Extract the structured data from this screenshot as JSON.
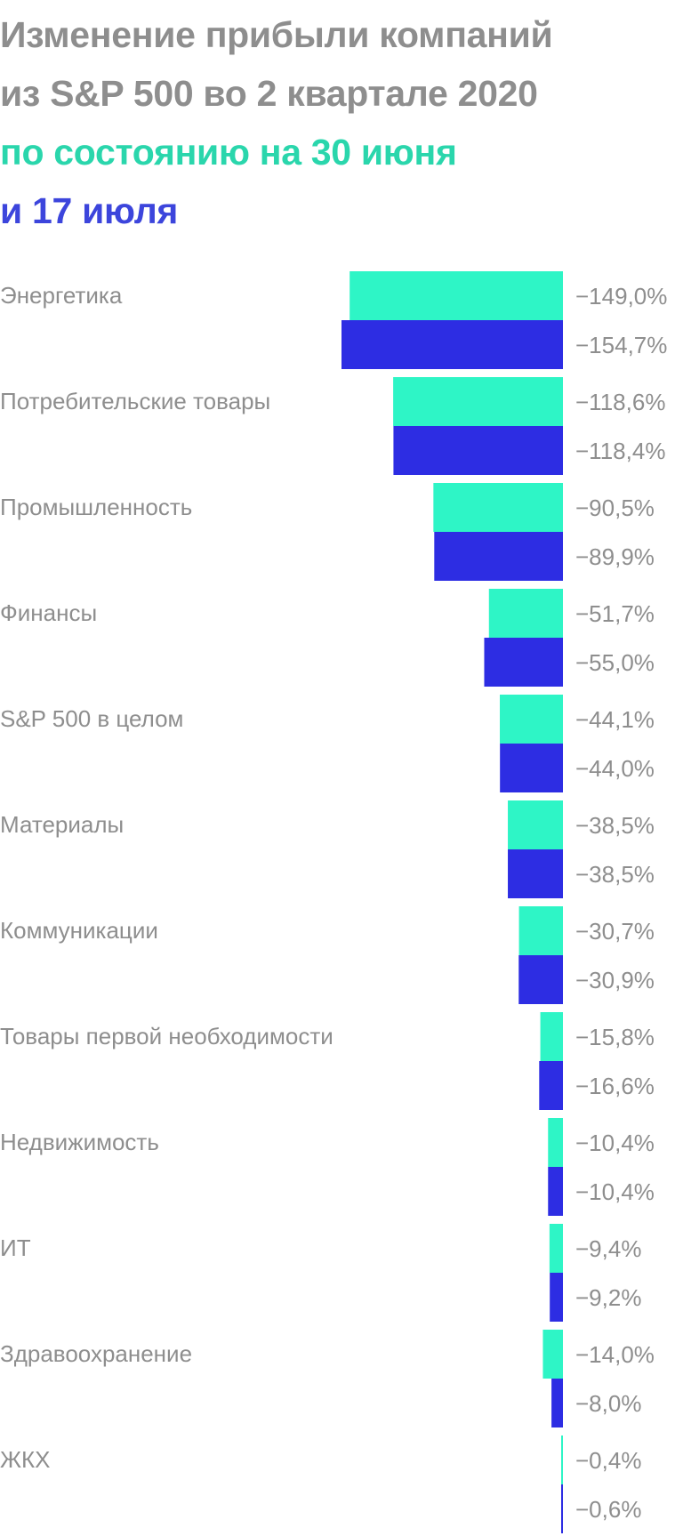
{
  "title": {
    "line1": "Изменение прибыли компаний",
    "line2": "из S&P 500 во 2 квартале 2020",
    "line3": "по состоянию на 30 июня",
    "line4": "и 17 июля"
  },
  "colors": {
    "title": "#8e8e8e",
    "june30": "#2ef5c6",
    "july17": "#2d2de3",
    "label": "#8e8e8e"
  },
  "chart_data": {
    "type": "bar",
    "orientation": "horizontal",
    "title": "Изменение прибыли компаний из S&P 500 во 2 квартале 2020",
    "categories": [
      "Энергетика",
      "Потребительские товары",
      "Промышленность",
      "Финансы",
      "S&P 500 в целом",
      "Материалы",
      "Коммуникации",
      "Товары первой необходимости",
      "Недвижимость",
      "ИТ",
      "Здравоохранение",
      "ЖКХ"
    ],
    "series": [
      {
        "name": "по состоянию на 30 июня",
        "color": "#2ef5c6",
        "values": [
          -149.0,
          -118.6,
          -90.5,
          -51.7,
          -44.1,
          -38.5,
          -30.7,
          -15.8,
          -10.4,
          -9.4,
          -14.0,
          -0.4
        ],
        "labels": [
          "−149,0%",
          "−118,6%",
          "−90,5%",
          "−51,7%",
          "−44,1%",
          "−38,5%",
          "−30,7%",
          "−15,8%",
          "−10,4%",
          "−9,4%",
          "−14,0%",
          "−0,4%"
        ]
      },
      {
        "name": "и 17 июля",
        "color": "#2d2de3",
        "values": [
          -154.7,
          -118.4,
          -89.9,
          -55.0,
          -44.0,
          -38.5,
          -30.9,
          -16.6,
          -10.4,
          -9.2,
          -8.0,
          -0.6
        ],
        "labels": [
          "−154,7%",
          "−118,4%",
          "−89,9%",
          "−55,0%",
          "−44,0%",
          "−38,5%",
          "−30,9%",
          "−16,6%",
          "−10,4%",
          "−9,2%",
          "−8,0%",
          "−0,6%"
        ]
      }
    ],
    "unit": "%",
    "xlim": [
      -154.7,
      0
    ],
    "grid": false,
    "legend": "title"
  }
}
